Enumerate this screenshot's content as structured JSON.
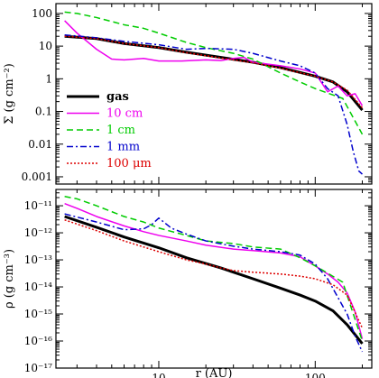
{
  "chart_data": [
    {
      "type": "line",
      "panel": "top",
      "yscale": "log",
      "xscale": "log",
      "xlim": [
        2.2,
        230
      ],
      "ylim": [
        0.0006,
        200
      ],
      "ylabel": "Σ (g cm⁻²)",
      "xlabel": "",
      "yticks": [
        "0.001",
        "0.01",
        "0.1",
        "1",
        "10",
        "100"
      ],
      "xticks": [],
      "legend": {
        "placement": "bottom-left",
        "entries": [
          "gas",
          "10 cm",
          "1 cm",
          "1 mm",
          "100 μm"
        ]
      },
      "series": [
        {
          "name": "gas",
          "color": "#000000",
          "dash": "solid",
          "width": 3,
          "x": [
            2.5,
            4,
            6,
            10,
            15,
            25,
            40,
            60,
            100,
            130,
            160,
            200
          ],
          "y": [
            20,
            17,
            12,
            9,
            6.5,
            4.5,
            3.2,
            2.2,
            1.2,
            0.8,
            0.4,
            0.11
          ]
        },
        {
          "name": "10 cm",
          "color": "#ee00ee",
          "dash": "solid",
          "width": 1.5,
          "x": [
            2.5,
            3,
            4,
            5,
            6,
            8,
            10,
            14,
            20,
            25,
            30,
            35,
            40,
            50,
            60,
            80,
            100,
            120,
            140,
            160,
            180,
            200
          ],
          "y": [
            60,
            25,
            8,
            4,
            3.8,
            4.2,
            3.5,
            3.5,
            3.8,
            3.6,
            4.2,
            4.5,
            3.2,
            2.8,
            2.5,
            2,
            1.5,
            0.4,
            0.6,
            0.3,
            0.35,
            0.15
          ]
        },
        {
          "name": "1 cm",
          "color": "#00cc00",
          "dash": "dashed",
          "width": 1.5,
          "x": [
            2.5,
            3,
            4,
            6,
            8,
            10,
            15,
            20,
            30,
            40,
            60,
            80,
            100,
            150,
            200
          ],
          "y": [
            110,
            100,
            75,
            45,
            35,
            25,
            13,
            9,
            6,
            4,
            1.5,
            0.8,
            0.5,
            0.25,
            0.02
          ]
        },
        {
          "name": "1 mm",
          "color": "#0000cc",
          "dash": "dashdot",
          "width": 1.5,
          "x": [
            2.5,
            4,
            6,
            10,
            15,
            20,
            30,
            40,
            60,
            80,
            100,
            120,
            140,
            160,
            175,
            190,
            200
          ],
          "y": [
            22,
            18,
            14,
            11,
            8,
            8.5,
            8,
            6,
            3.5,
            2.5,
            1.5,
            0.5,
            0.3,
            0.04,
            0.006,
            0.0015,
            0.0012
          ]
        },
        {
          "name": "100 μm",
          "color": "#dd0000",
          "dash": "dotted",
          "width": 1.5,
          "x": [
            2.5,
            4,
            6,
            10,
            15,
            25,
            40,
            60,
            100,
            130,
            160,
            200
          ],
          "y": [
            20,
            17,
            12,
            9,
            6.3,
            4.3,
            3.1,
            2.1,
            1.2,
            0.8,
            0.45,
            0.13
          ]
        }
      ]
    },
    {
      "type": "line",
      "panel": "bottom",
      "yscale": "log",
      "xscale": "log",
      "xlim": [
        2.2,
        230
      ],
      "ylim": [
        1e-17,
        4e-11
      ],
      "ylabel": "ρ (g cm⁻³)",
      "xlabel": "r (AU)",
      "yticks": [
        "10⁻¹⁷",
        "10⁻¹⁶",
        "10⁻¹⁵",
        "10⁻¹⁴",
        "10⁻¹³",
        "10⁻¹²",
        "10⁻¹¹"
      ],
      "xticks": [
        "10",
        "100"
      ],
      "series": [
        {
          "name": "gas",
          "color": "#000000",
          "dash": "solid",
          "width": 3,
          "x": [
            2.5,
            4,
            6,
            10,
            15,
            25,
            40,
            60,
            80,
            100,
            130,
            160,
            200
          ],
          "y": [
            4e-12,
            1.6e-12,
            7e-13,
            2.8e-13,
            1.2e-13,
            5e-14,
            2e-14,
            9e-15,
            5e-15,
            3e-15,
            1.3e-15,
            4e-16,
            8e-17
          ]
        },
        {
          "name": "10 cm",
          "color": "#ee00ee",
          "dash": "solid",
          "width": 1.5,
          "x": [
            2.5,
            3,
            4,
            6,
            8,
            10,
            15,
            20,
            30,
            40,
            60,
            80,
            100,
            120,
            140,
            160,
            180,
            200
          ],
          "y": [
            1.2e-11,
            8e-12,
            4e-12,
            1.8e-12,
            1.1e-12,
            8e-13,
            5e-13,
            3.5e-13,
            2.5e-13,
            2.2e-13,
            1.8e-13,
            1.3e-13,
            6e-14,
            3e-14,
            1.5e-14,
            6e-15,
            1.2e-15,
            1.2e-16
          ]
        },
        {
          "name": "1 cm",
          "color": "#00cc00",
          "dash": "dashed",
          "width": 1.5,
          "x": [
            2.5,
            3,
            4,
            6,
            8,
            10,
            15,
            20,
            30,
            40,
            60,
            80,
            100,
            150,
            200
          ],
          "y": [
            2.2e-11,
            1.8e-11,
            1e-11,
            4e-12,
            2.5e-12,
            1.5e-12,
            8e-13,
            5e-13,
            4e-13,
            3e-13,
            2.5e-13,
            1.2e-13,
            6e-14,
            1.5e-14,
            1e-16
          ]
        },
        {
          "name": "1 mm",
          "color": "#0000cc",
          "dash": "dashdot",
          "width": 1.5,
          "x": [
            2.5,
            4,
            6,
            8,
            9,
            10,
            12,
            15,
            20,
            30,
            40,
            60,
            80,
            100,
            120,
            140,
            160,
            180,
            200
          ],
          "y": [
            5e-12,
            2.5e-12,
            1.3e-12,
            1.4e-12,
            2e-12,
            3.5e-12,
            1.5e-12,
            9e-13,
            5e-13,
            3.2e-13,
            2.5e-13,
            2e-13,
            1.5e-13,
            7e-14,
            2e-14,
            4e-15,
            1e-15,
            1.5e-16,
            4e-17
          ]
        },
        {
          "name": "100 μm",
          "color": "#dd0000",
          "dash": "dotted",
          "width": 1.5,
          "x": [
            2.5,
            4,
            6,
            10,
            15,
            20,
            25,
            30,
            40,
            60,
            80,
            100,
            130,
            160,
            200
          ],
          "y": [
            3e-12,
            1.2e-12,
            5e-13,
            2e-13,
            1e-13,
            7e-14,
            5e-14,
            4e-14,
            3.5e-14,
            3e-14,
            2.5e-14,
            2e-14,
            1.2e-14,
            5e-15,
            3e-16
          ]
        }
      ]
    }
  ]
}
